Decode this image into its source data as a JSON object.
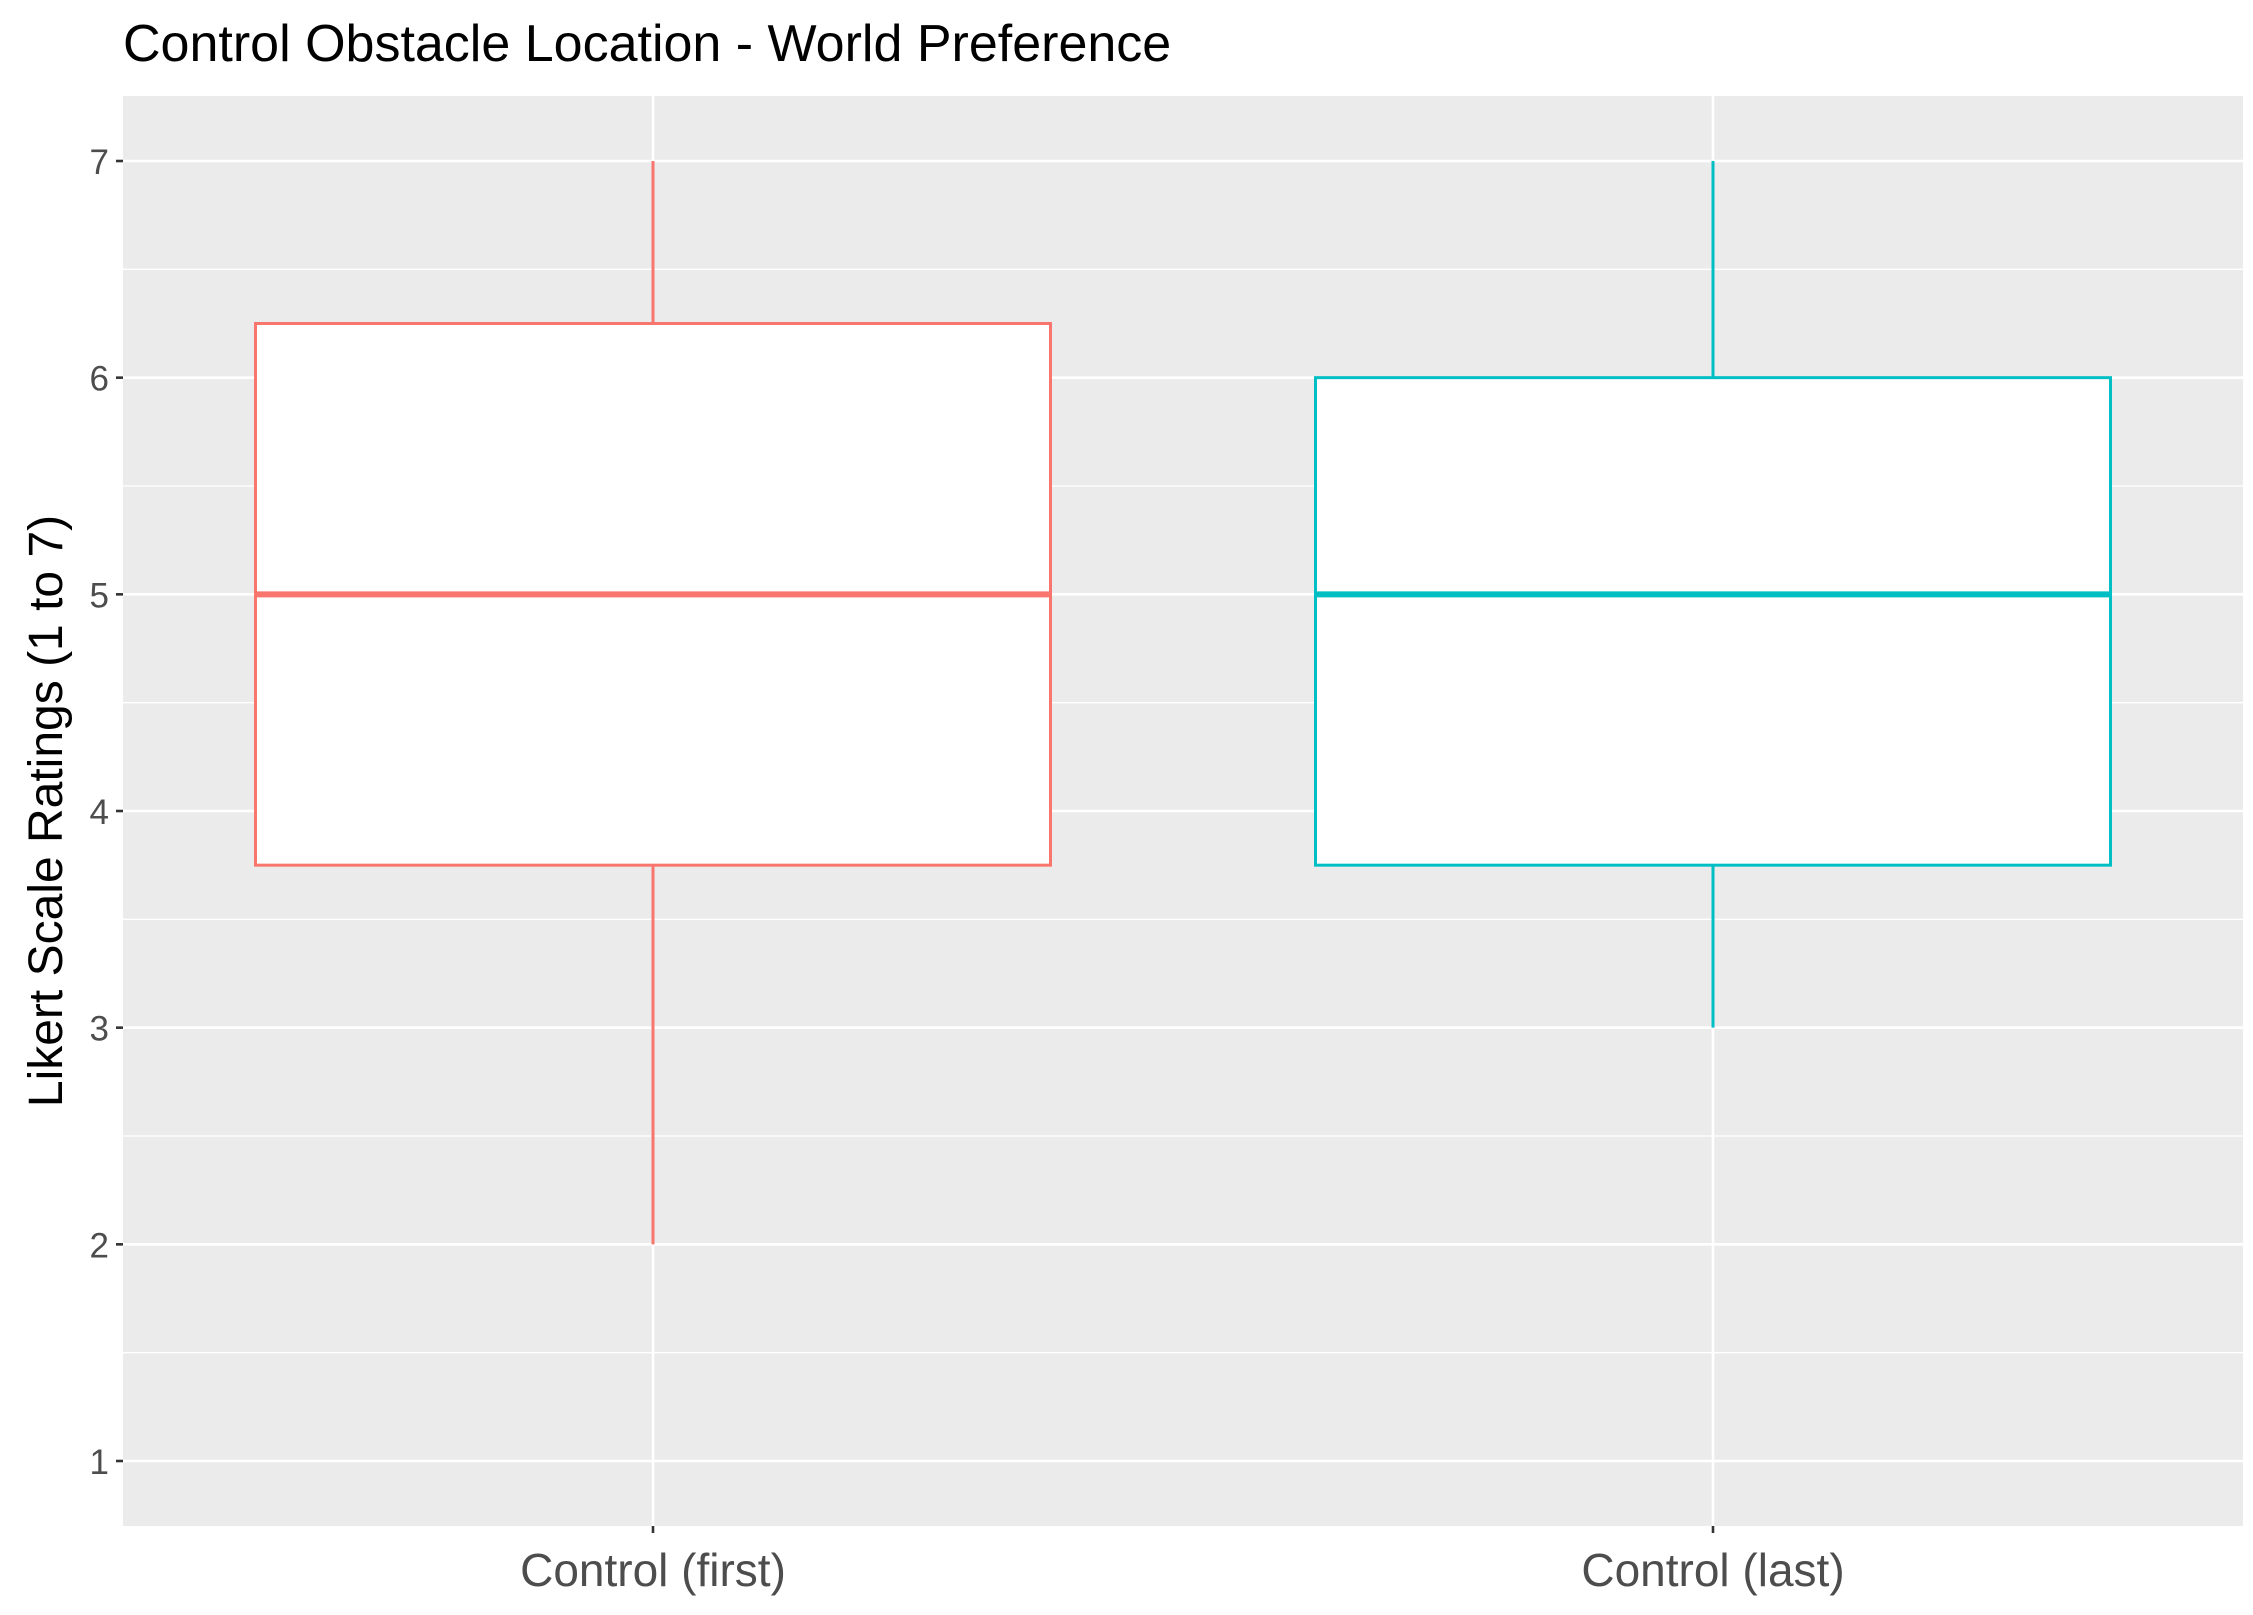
{
  "chart_data": {
    "type": "boxplot",
    "title": "Control Obstacle Location - World Preference",
    "xlabel": "",
    "ylabel": "Likert Scale Ratings (1 to 7)",
    "ylim": [
      0.7,
      7.3
    ],
    "yticks": [
      1,
      2,
      3,
      4,
      5,
      6,
      7
    ],
    "categories": [
      "Control (first)",
      "Control (last)"
    ],
    "series": [
      {
        "category": "Control (first)",
        "min": 2,
        "q1": 3.75,
        "median": 5,
        "q3": 6.25,
        "max": 7,
        "color": "#F8766D"
      },
      {
        "category": "Control (last)",
        "min": 3,
        "q1": 3.75,
        "median": 5,
        "q3": 6,
        "max": 7,
        "color": "#00BFC4"
      }
    ],
    "grid": true,
    "legend": "none",
    "panel_background": "#EBEBEB",
    "gridline_color": "#FFFFFF",
    "box_fill": "#FFFFFF"
  }
}
